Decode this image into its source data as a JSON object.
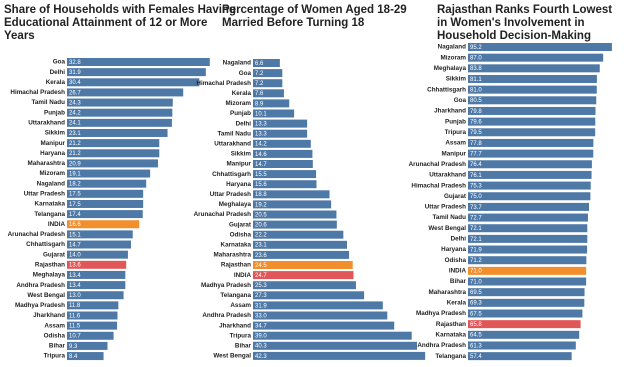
{
  "chart_data": [
    {
      "type": "bar",
      "title": "Share of Households with Females Having Educational Attainment of 12 or More Years",
      "categories": [
        "Goa",
        "Delhi",
        "Kerala",
        "Himachal Pradesh",
        "Tamil Nadu",
        "Punjab",
        "Uttarakhand",
        "Sikkim",
        "Manipur",
        "Haryana",
        "Maharashtra",
        "Mizoram",
        "Nagaland",
        "Uttar Pradesh",
        "Karnataka",
        "Telangana",
        "INDIA",
        "Arunachal Pradesh",
        "Chhattisgarh",
        "Gujarat",
        "Rajasthan",
        "Meghalaya",
        "Andhra Pradesh",
        "West Bengal",
        "Madhya Pradesh",
        "Jharkhand",
        "Assam",
        "Odisha",
        "Bihar",
        "Tripura"
      ],
      "values": [
        32.8,
        31.9,
        30.4,
        26.7,
        24.3,
        24.2,
        24.1,
        23.1,
        21.2,
        21.2,
        20.9,
        19.1,
        18.2,
        17.5,
        17.5,
        17.4,
        16.6,
        15.1,
        14.7,
        14.0,
        13.6,
        13.4,
        13.4,
        13.0,
        11.8,
        11.6,
        11.5,
        10.7,
        9.3,
        8.4
      ],
      "value_labels": [
        "32.8",
        "31.9",
        "30.4",
        "26.7",
        "24.3",
        "24.2",
        "24.1",
        "23.1",
        "21.2",
        "21.2",
        "20.9",
        "19.1",
        "18.2",
        "17.5",
        "17.5",
        "17.4",
        "16.6",
        "15.1",
        "14.7",
        "14.0",
        "13.6",
        "13.4",
        "13.4",
        "13.0",
        "11.8",
        "11.6",
        "11.5",
        "10.7",
        "9.3",
        "8.4"
      ],
      "colors": [
        "#4e79a7",
        "#4e79a7",
        "#4e79a7",
        "#4e79a7",
        "#4e79a7",
        "#4e79a7",
        "#4e79a7",
        "#4e79a7",
        "#4e79a7",
        "#4e79a7",
        "#4e79a7",
        "#4e79a7",
        "#4e79a7",
        "#4e79a7",
        "#4e79a7",
        "#4e79a7",
        "#f28e2b",
        "#4e79a7",
        "#4e79a7",
        "#4e79a7",
        "#e15759",
        "#4e79a7",
        "#4e79a7",
        "#4e79a7",
        "#4e79a7",
        "#4e79a7",
        "#4e79a7",
        "#4e79a7",
        "#4e79a7",
        "#4e79a7"
      ],
      "xlim": [
        0,
        34
      ]
    },
    {
      "type": "bar",
      "title": "Percentage of Women Aged 18-29 Married Before Turning 18",
      "categories": [
        "Nagaland",
        "Goa",
        "Himachal Pradesh",
        "Kerala",
        "Mizoram",
        "Punjab",
        "Delhi",
        "Tamil Nadu",
        "Uttarakhand",
        "Sikkim",
        "Manipur",
        "Chhattisgarh",
        "Haryana",
        "Uttar Pradesh",
        "Meghalaya",
        "Arunachal Pradesh",
        "Gujarat",
        "Odisha",
        "Karnataka",
        "Maharashtra",
        "Rajasthan",
        "INDIA",
        "Madhya Pradesh",
        "Telangana",
        "Assam",
        "Andhra Pradesh",
        "Jharkhand",
        "Tripura",
        "Bihar",
        "West Bengal"
      ],
      "values": [
        6.6,
        7.2,
        7.2,
        7.6,
        8.9,
        10.1,
        13.3,
        13.3,
        14.2,
        14.6,
        14.7,
        15.5,
        15.6,
        18.8,
        19.2,
        20.5,
        20.6,
        22.2,
        23.1,
        23.6,
        24.5,
        24.7,
        25.3,
        27.3,
        31.9,
        33.0,
        34.7,
        39.0,
        40.3,
        42.3
      ],
      "value_labels": [
        "6.6",
        "7.2",
        "7.2",
        "7.6",
        "8.9",
        "10.1",
        "13.3",
        "13.3",
        "14.2",
        "14.6",
        "14.7",
        "15.5",
        "15.6",
        "18.8",
        "19.2",
        "20.5",
        "20.6",
        "22.2",
        "23.1",
        "23.6",
        "24.5",
        "24.7",
        "25.3",
        "27.3",
        "31.9",
        "33.0",
        "34.7",
        "39.0",
        "40.3",
        "42.3"
      ],
      "colors": [
        "#4e79a7",
        "#4e79a7",
        "#4e79a7",
        "#4e79a7",
        "#4e79a7",
        "#4e79a7",
        "#4e79a7",
        "#4e79a7",
        "#4e79a7",
        "#4e79a7",
        "#4e79a7",
        "#4e79a7",
        "#4e79a7",
        "#4e79a7",
        "#4e79a7",
        "#4e79a7",
        "#4e79a7",
        "#4e79a7",
        "#4e79a7",
        "#4e79a7",
        "#f28e2b",
        "#e15759",
        "#4e79a7",
        "#4e79a7",
        "#4e79a7",
        "#4e79a7",
        "#4e79a7",
        "#4e79a7",
        "#4e79a7",
        "#4e79a7"
      ],
      "xlim": [
        0,
        43
      ]
    },
    {
      "type": "bar",
      "title": "Rajasthan Ranks Fourth Lowest in Women's Involvement in Household Decision-Making",
      "categories": [
        "Nagaland",
        "Mizoram",
        "Meghalaya",
        "Sikkim",
        "Chhattisgarh",
        "Goa",
        "Jharkhand",
        "Punjab",
        "Tripura",
        "Assam",
        "Manipur",
        "Arunachal Pradesh",
        "Uttarakhand",
        "Himachal Pradesh",
        "Gujarat",
        "Uttar Pradesh",
        "Tamil Nadu",
        "West Bengal",
        "Delhi",
        "Haryana",
        "Odisha",
        "INDIA",
        "Bihar",
        "Maharashtra",
        "Kerala",
        "Madhya Pradesh",
        "Rajasthan",
        "Karnataka",
        "Andhra Pradesh",
        "Telangana"
      ],
      "values": [
        95.2,
        87.0,
        83.8,
        81.1,
        81.0,
        80.5,
        79.8,
        79.6,
        79.5,
        77.8,
        77.7,
        76.4,
        76.1,
        75.3,
        75.0,
        73.7,
        72.7,
        72.1,
        72.1,
        71.9,
        71.2,
        71.0,
        71.0,
        69.5,
        69.3,
        67.5,
        65.8,
        64.5,
        61.3,
        57.4
      ],
      "value_labels": [
        "95.2",
        "87.0",
        "83.8",
        "81.1",
        "81.0",
        "80.5",
        "79.8",
        "79.6",
        "79.5",
        "77.8",
        "77.7",
        "76.4",
        "76.1",
        "75.3",
        "75.0",
        "73.7",
        "72.7",
        "72.1",
        "72.1",
        "71.9",
        "71.2",
        "71.0",
        "71.0",
        "69.5",
        "69.3",
        "67.5",
        "65.8",
        "64.5",
        "61.3",
        "57.4"
      ],
      "colors": [
        "#4e79a7",
        "#4e79a7",
        "#4e79a7",
        "#4e79a7",
        "#4e79a7",
        "#4e79a7",
        "#4e79a7",
        "#4e79a7",
        "#4e79a7",
        "#4e79a7",
        "#4e79a7",
        "#4e79a7",
        "#4e79a7",
        "#4e79a7",
        "#4e79a7",
        "#4e79a7",
        "#4e79a7",
        "#4e79a7",
        "#4e79a7",
        "#4e79a7",
        "#4e79a7",
        "#f28e2b",
        "#4e79a7",
        "#4e79a7",
        "#4e79a7",
        "#4e79a7",
        "#e15759",
        "#4e79a7",
        "#4e79a7",
        "#4e79a7"
      ],
      "xlim": [
        -40,
        100
      ]
    }
  ]
}
